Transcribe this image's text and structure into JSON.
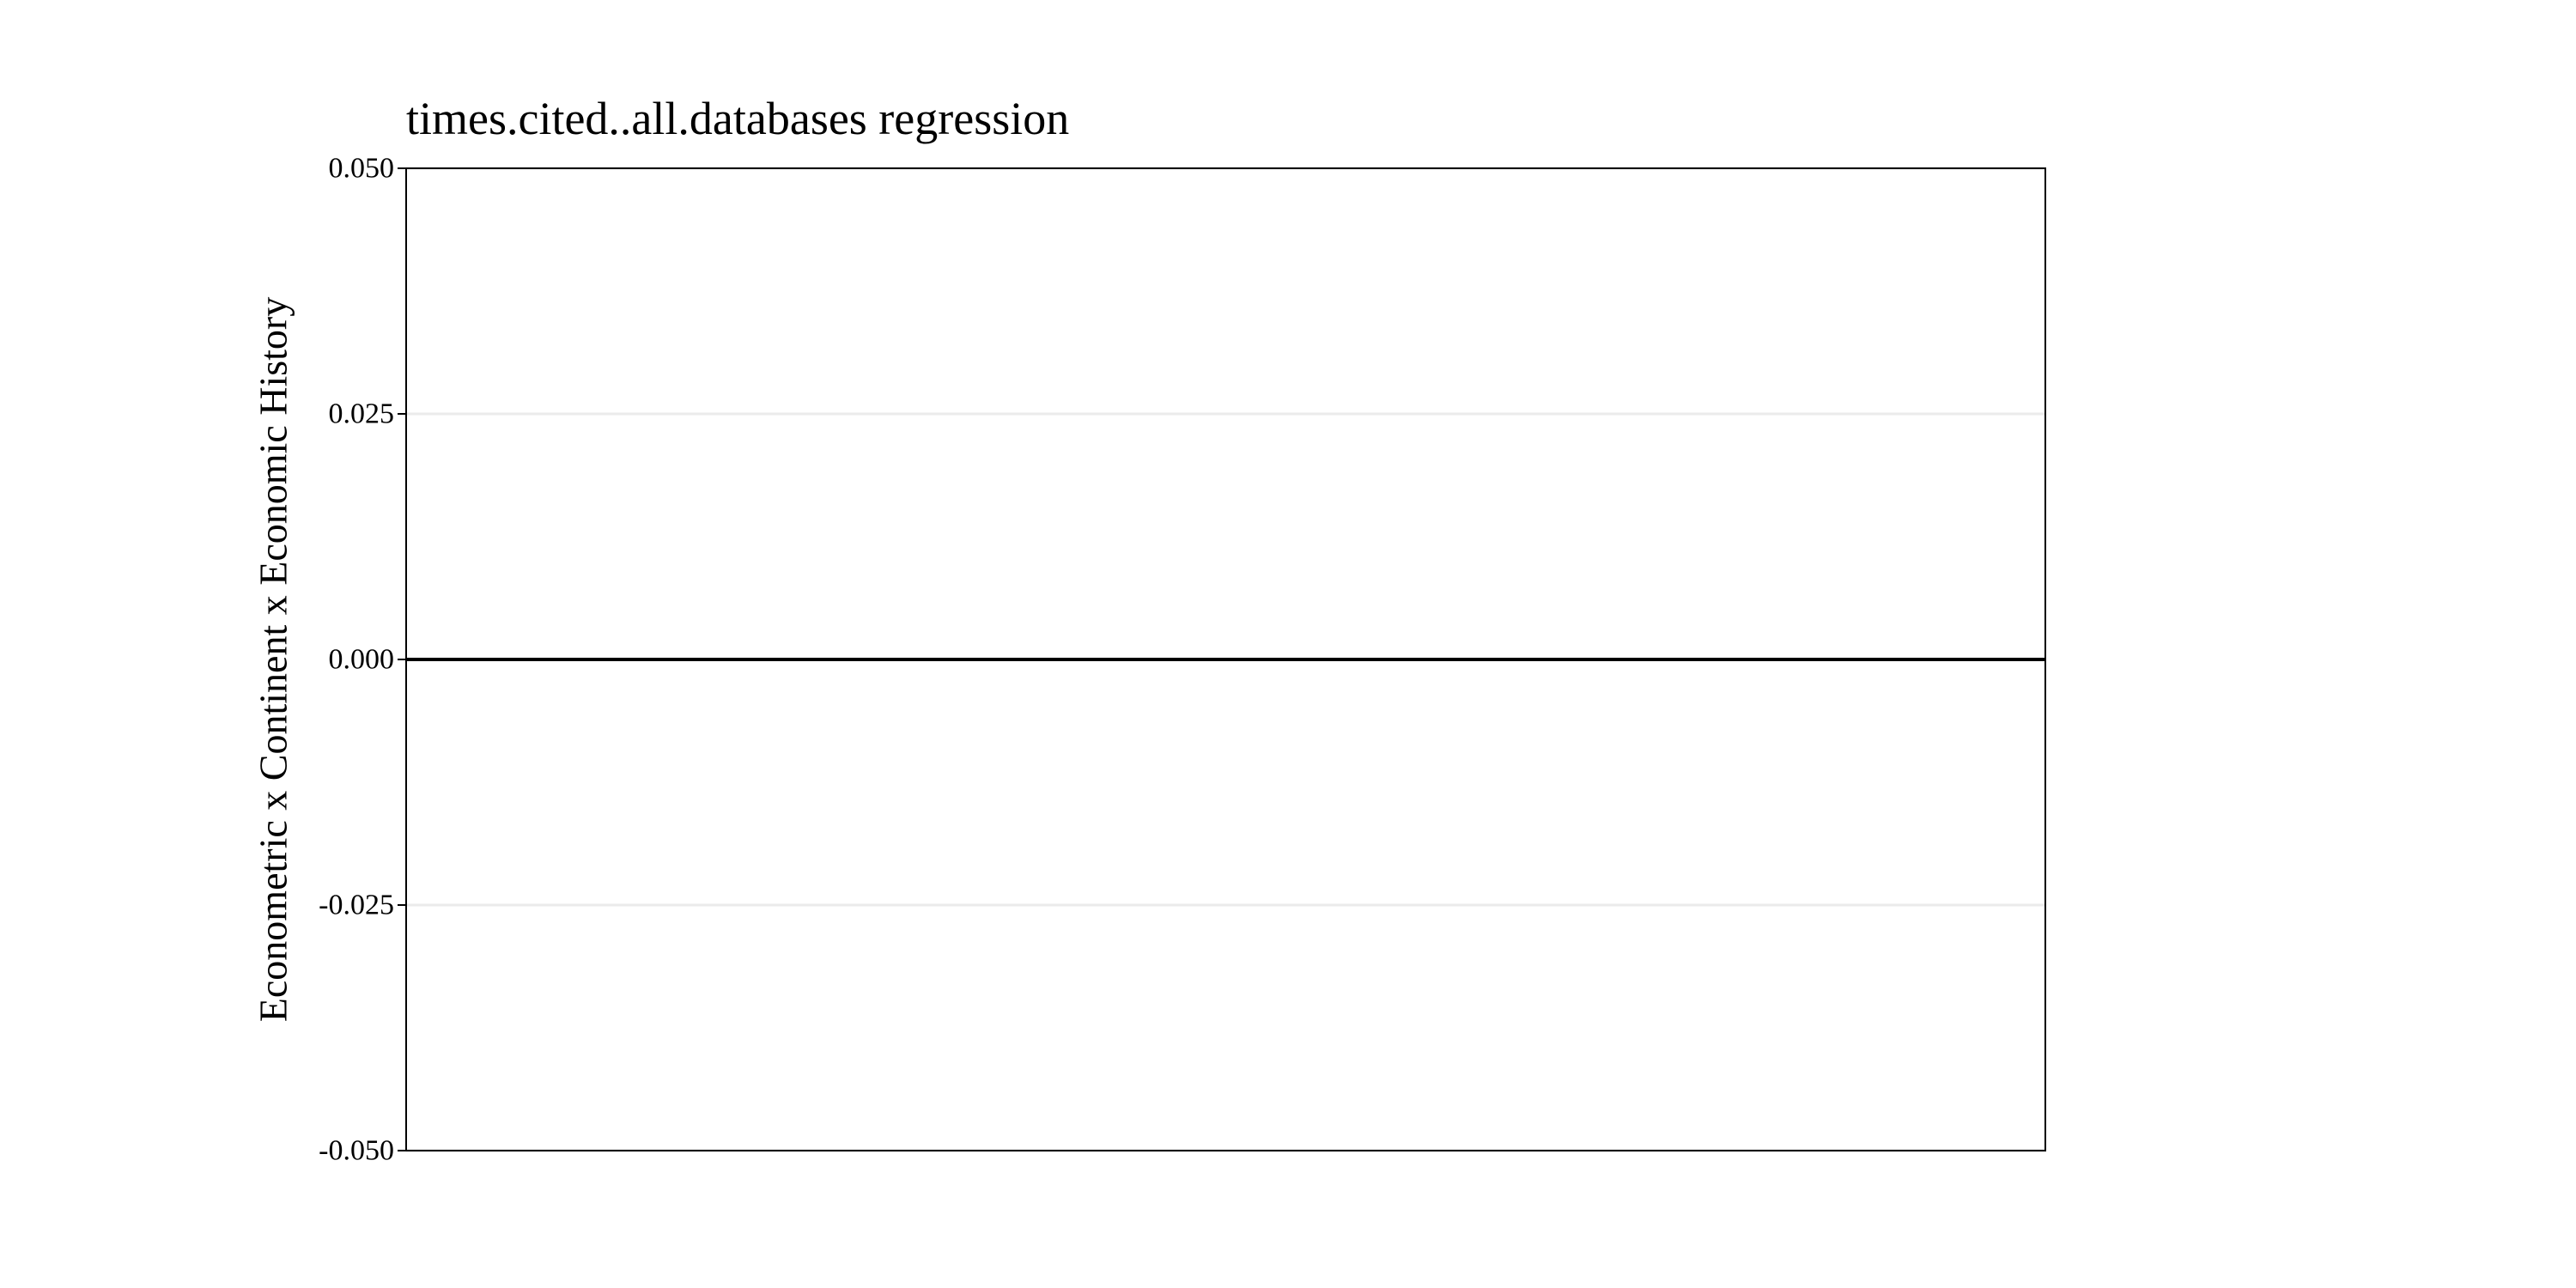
{
  "chart_data": {
    "type": "line",
    "title": "times.cited..all.databases regression",
    "xlabel": "",
    "ylabel": "Econometric x Continent x Economic History",
    "ylim": [
      -0.05,
      0.05
    ],
    "y_ticks": [
      {
        "value": 0.05,
        "label": "0.050"
      },
      {
        "value": 0.025,
        "label": "0.025"
      },
      {
        "value": 0.0,
        "label": "0.000"
      },
      {
        "value": -0.025,
        "label": "-0.025"
      },
      {
        "value": -0.05,
        "label": "-0.050"
      }
    ],
    "reference_line": {
      "y": 0.0
    },
    "grid": "horizontal major lines",
    "legend": "none",
    "series": []
  },
  "colors": {
    "background": "#ffffff",
    "panel_border": "#000000",
    "gridline": "#ebebeb",
    "reference_line": "#000000",
    "text": "#000000"
  }
}
